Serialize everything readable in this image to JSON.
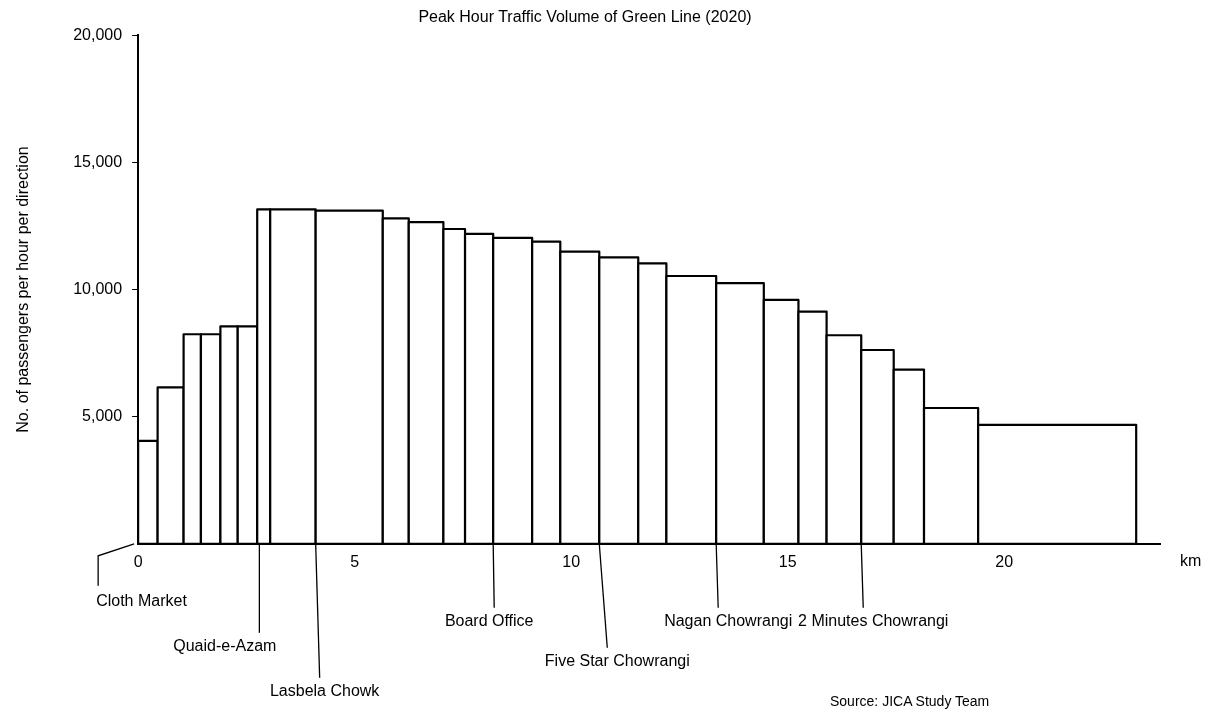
{
  "chart_data": {
    "type": "histogram",
    "title": "Peak Hour Traffic Volume of Green Line (2020)",
    "xlabel": "km",
    "ylabel": "No. of passengers per hour per direction",
    "bins": [
      0,
      0.45,
      1.05,
      1.45,
      1.9,
      2.3,
      2.75,
      3.05,
      4.1,
      5.65,
      6.25,
      7.05,
      7.55,
      8.2,
      9.1,
      9.75,
      10.65,
      11.55,
      12.2,
      13.35,
      14.45,
      15.25,
      15.9,
      16.7,
      17.45,
      18.15,
      19.4,
      23.05
    ],
    "values": [
      4050,
      6150,
      8240,
      8240,
      8550,
      8550,
      13150,
      13150,
      13100,
      12800,
      12650,
      12380,
      12190,
      12030,
      11880,
      11490,
      11260,
      11030,
      10530,
      10250,
      9590,
      9130,
      8200,
      7620,
      6850,
      5340,
      4680
    ],
    "color": "#ffffff",
    "xlim": [
      0,
      23.6
    ],
    "xticks": [
      0,
      5,
      10,
      15,
      20
    ],
    "ylim": [
      0,
      20000
    ],
    "yticks": [
      {
        "value": 5000,
        "label": "5,000"
      },
      {
        "value": 10000,
        "label": "10,000"
      },
      {
        "value": 15000,
        "label": "15,000"
      },
      {
        "value": 20000,
        "label": "20,000"
      }
    ],
    "grid": false,
    "legend": false,
    "annotations": [
      {
        "text": "Cloth Market",
        "x": 0,
        "y": 0
      },
      {
        "text": "Quaid-e-Azam",
        "x": 2.8,
        "y": 0
      },
      {
        "text": "Lasbela Chowk",
        "x": 4.1,
        "y": 0
      },
      {
        "text": "Board Office",
        "x": 8.2,
        "y": 0
      },
      {
        "text": "Five Star Chowrangi",
        "x": 10.65,
        "y": 0
      },
      {
        "text": "Nagan Chowrangi",
        "x": 13.35,
        "y": 0
      },
      {
        "text": "2 Minutes Chowrangi",
        "x": 16.7,
        "y": 0
      },
      "Source: JICA Study Team"
    ]
  }
}
